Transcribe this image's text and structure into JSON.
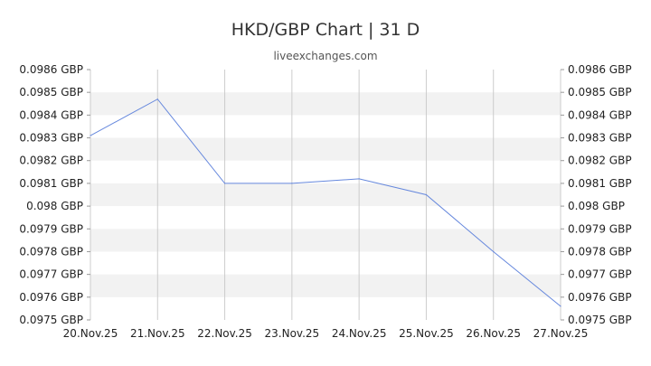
{
  "chart_data": {
    "type": "line",
    "title": "HKD/GBP Chart | 31 D",
    "subtitle": "liveexchanges.com",
    "xlabel": "",
    "ylabel": "",
    "x_tick_labels": [
      "20.Nov.25",
      "21.Nov.25",
      "22.Nov.25",
      "23.Nov.25",
      "24.Nov.25",
      "25.Nov.25",
      "26.Nov.25",
      "27.Nov.25"
    ],
    "y_tick_labels_left": [
      "0.0986 GBP",
      "0.0985 GBP",
      "0.0984 GBP",
      "0.0983 GBP",
      "0.0982 GBP",
      "0.0981 GBP",
      "0.098 GBP",
      "0.0979 GBP",
      "0.0978 GBP",
      "0.0977 GBP",
      "0.0976 GBP",
      "0.0975 GBP"
    ],
    "y_tick_labels_right": [
      "0.0986 GBP",
      "0.0985 GBP",
      "0.0984 GBP",
      "0.0983 GBP",
      "0.0982 GBP",
      "0.0981 GBP",
      "0.098 GBP",
      "0.0979 GBP",
      "0.0978 GBP",
      "0.0977 GBP",
      "0.0976 GBP",
      "0.0975 GBP"
    ],
    "ylim": [
      0.0975,
      0.0986
    ],
    "series": [
      {
        "x": [
          "20.Nov.25",
          "21.Nov.25",
          "22.Nov.25",
          "23.Nov.25",
          "24.Nov.25",
          "25.Nov.25",
          "26.Nov.25",
          "27.Nov.25"
        ],
        "values": [
          0.09831,
          0.09847,
          0.0981,
          0.0981,
          0.09812,
          0.09805,
          0.0978,
          0.09756
        ],
        "color": "#6688dd"
      }
    ],
    "grid": true,
    "band_color": "#f2f2f2",
    "gridline_color": "#cccccc"
  }
}
